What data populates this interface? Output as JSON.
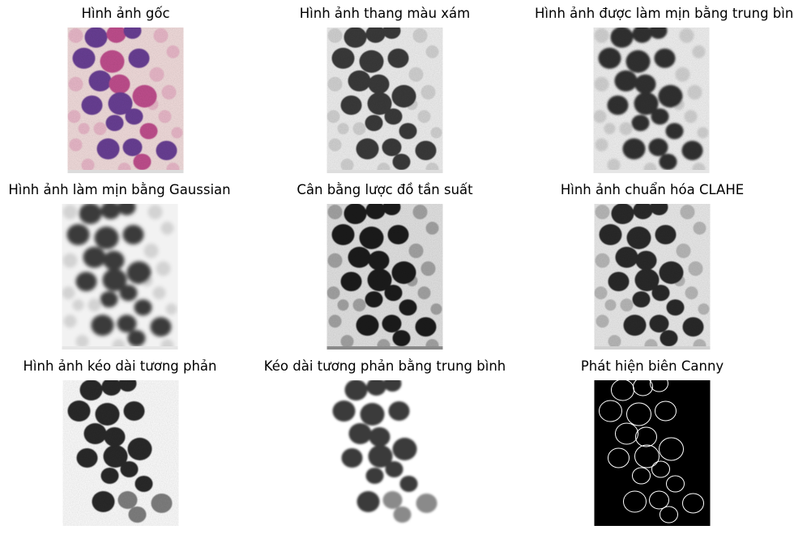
{
  "figure": {
    "panels": [
      {
        "id": "original",
        "title": "Hình ảnh gốc",
        "style": "color"
      },
      {
        "id": "grayscale",
        "title": "Hình ảnh thang màu xám",
        "style": "gray"
      },
      {
        "id": "mean-smooth",
        "title": "Hình ảnh được làm mịn bằng trung bình",
        "style": "gray-soft"
      },
      {
        "id": "gaussian-smooth",
        "title": "Hình ảnh làm mịn bằng Gaussian",
        "style": "gray-blur"
      },
      {
        "id": "hist-equalization",
        "title": "Cân bằng lược đồ tần suất",
        "style": "gray-equalized"
      },
      {
        "id": "clahe",
        "title": "Hình ảnh chuẩn hóa CLAHE",
        "style": "gray-clahe"
      },
      {
        "id": "contrast-stretch",
        "title": "Hình ảnh kéo dài tương phản",
        "style": "stretch"
      },
      {
        "id": "mean-contrast-stretch",
        "title": "Kéo dài tương phản bằng trung bình",
        "style": "stretch-smooth"
      },
      {
        "id": "canny",
        "title": "Phát hiện biên Canny",
        "style": "edges"
      }
    ],
    "colors": {
      "background": "#ffffff",
      "stain_background": "#f4dede",
      "cell_purple": "#6a3f96",
      "cell_pink": "#c2508f",
      "rbc_pink": "#e8b2c6",
      "edge_line": "#ffffff",
      "edge_background": "#000000"
    }
  }
}
